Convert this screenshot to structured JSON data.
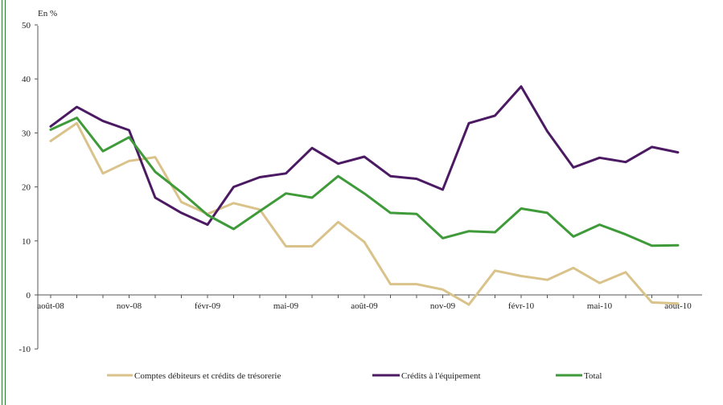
{
  "chart_data": {
    "type": "line",
    "unit_label": "En %",
    "x": [
      "août-08",
      "sept-08",
      "oct-08",
      "nov-08",
      "déc-08",
      "janv-09",
      "févr-09",
      "mars-09",
      "avr-09",
      "mai-09",
      "juin-09",
      "juil-09",
      "août-09",
      "sept-09",
      "oct-09",
      "nov-09",
      "déc-09",
      "janv-10",
      "févr-10",
      "mars-10",
      "avr-10",
      "mai-10",
      "juin-10",
      "juil-10",
      "août-10"
    ],
    "x_tick_labels": [
      "août-08",
      "nov-08",
      "févr-09",
      "mai-09",
      "août-09",
      "nov-09",
      "févr-10",
      "mai-10",
      "août-10"
    ],
    "ylim": [
      -10,
      50
    ],
    "y_ticks": [
      -10,
      0,
      10,
      20,
      30,
      40,
      50
    ],
    "grid": false,
    "legend_position": "bottom",
    "series": [
      {
        "name": "Comptes débiteurs et crédits de trésorerie",
        "color": "#d9c38a",
        "values": [
          28.5,
          31.8,
          22.5,
          24.8,
          25.5,
          17.2,
          15.0,
          17.0,
          15.8,
          9.0,
          9.0,
          13.5,
          9.8,
          2.0,
          2.0,
          1.0,
          -1.8,
          4.5,
          3.5,
          2.8,
          5.0,
          2.2,
          4.2,
          -1.4,
          -1.6
        ]
      },
      {
        "name": "Crédits à l'équipement",
        "color": "#4b1a63",
        "values": [
          31.2,
          34.8,
          32.2,
          30.5,
          18.0,
          15.2,
          13.0,
          20.0,
          21.8,
          22.5,
          27.2,
          24.3,
          25.6,
          22.0,
          21.5,
          19.5,
          31.8,
          33.2,
          38.6,
          30.3,
          23.6,
          25.4,
          24.6,
          27.4,
          26.4
        ]
      },
      {
        "name": "Total",
        "color": "#3f9a3a",
        "values": [
          30.6,
          32.8,
          26.6,
          29.2,
          22.8,
          19.0,
          14.8,
          12.2,
          15.5,
          18.8,
          18.0,
          22.0,
          18.8,
          15.2,
          15.0,
          10.5,
          11.8,
          11.6,
          16.0,
          15.2,
          10.8,
          13.0,
          11.2,
          9.1,
          9.2
        ]
      }
    ]
  }
}
